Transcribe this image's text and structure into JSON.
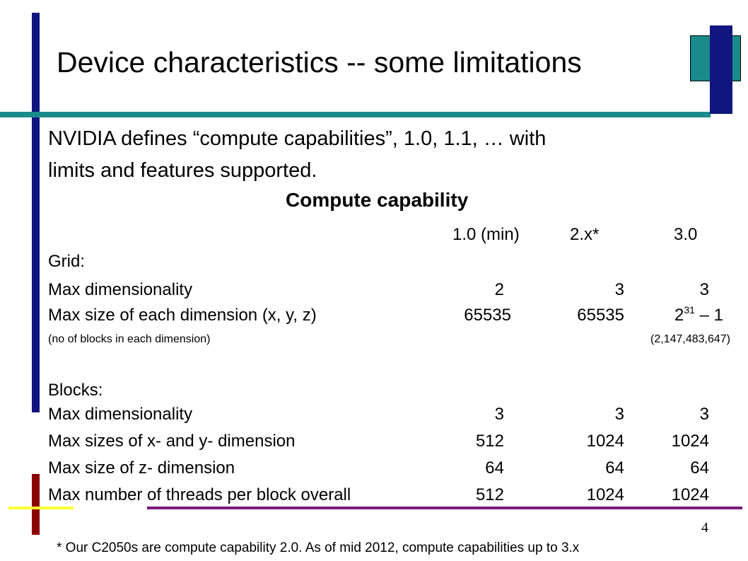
{
  "colors": {
    "navy": "#10167f",
    "teal": "#1a8a8a",
    "maroon": "#8b0000",
    "yellow": "#ffff33",
    "purple": "#7b1a7b"
  },
  "slide": {
    "title": "Device characteristics -- some limitations",
    "intro_line1": "NVIDIA defines “compute capabilities”, 1.0, 1.1, … with",
    "intro_line2": "limits and features supported.",
    "heading": "Compute capability",
    "columns": [
      "1.0 (min)",
      "2.x*",
      "3.0"
    ],
    "grid_section": "Grid:",
    "grid_rows": [
      {
        "label": "Max dimensionality",
        "v1": "2",
        "v2": "3",
        "v3": "3"
      },
      {
        "label": "Max size of each dimension (x, y, z)",
        "v1": "65535",
        "v2": "65535",
        "v3_base": "2",
        "v3_exp": "31",
        "v3_tail": " – 1"
      }
    ],
    "grid_note": "(no of blocks in each dimension)",
    "grid_note_value": "(2,147,483,647)",
    "blocks_section": "Blocks:",
    "block_rows": [
      {
        "label": "Max dimensionality",
        "v1": "3",
        "v2": "3",
        "v3": "3"
      },
      {
        "label": "Max sizes of x- and y- dimension",
        "v1": "512",
        "v2": "1024",
        "v3": "1024"
      },
      {
        "label": "Max size of z- dimension",
        "v1": "64",
        "v2": "64",
        "v3": "64"
      },
      {
        "label": "Max number of threads per block overall",
        "v1": "512",
        "v2": "1024",
        "v3": "1024"
      }
    ],
    "page_number": "4",
    "footnote": "* Our C2050s are compute capability 2.0. As of mid 2012, compute capabilities up to 3.x"
  }
}
